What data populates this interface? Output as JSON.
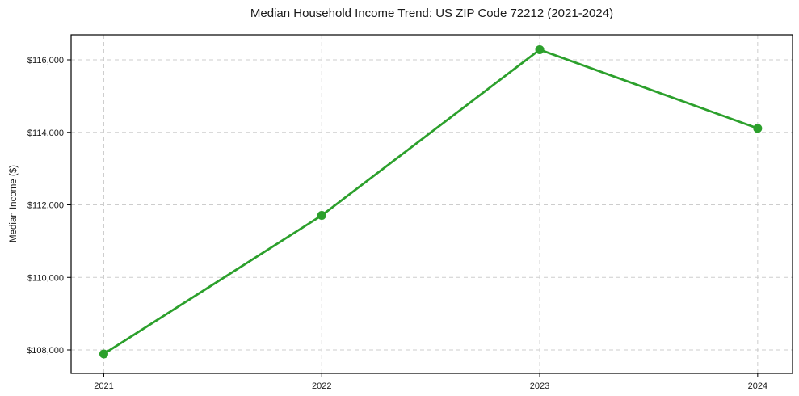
{
  "chart_data": {
    "type": "line",
    "title": "Median Household Income Trend: US ZIP Code 72212 (2021-2024)",
    "xlabel": "",
    "ylabel": "Median Income ($)",
    "x": [
      2021,
      2022,
      2023,
      2024
    ],
    "series": [
      {
        "name": "Median Household Income",
        "values": [
          107890,
          111710,
          116280,
          114110
        ]
      }
    ],
    "xticks": {
      "values": [
        2021,
        2022,
        2023,
        2024
      ],
      "labels": [
        "2021",
        "2022",
        "2023",
        "2024"
      ]
    },
    "yticks": {
      "values": [
        108000,
        110000,
        112000,
        114000,
        116000
      ],
      "labels": [
        "$108,000",
        "$110,000",
        "$112,000",
        "$114,000",
        "$116,000"
      ]
    },
    "xlim": [
      2020.85,
      2024.16
    ],
    "ylim": [
      107354,
      116691
    ],
    "grid": true,
    "grid_style": "dashed",
    "legend": "none",
    "line_color": "#2ca02c",
    "marker": "circle",
    "marker_color": "#2ca02c"
  }
}
